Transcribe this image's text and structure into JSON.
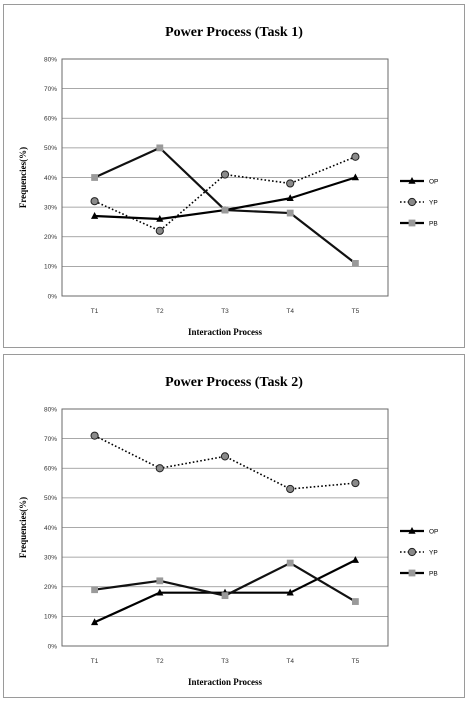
{
  "chart_data": [
    {
      "type": "line",
      "title": "Power Process (Task 1)",
      "xlabel": "Interaction Process",
      "ylabel": "Frequencies(%)",
      "categories": [
        "T1",
        "T2",
        "T3",
        "T4",
        "T5"
      ],
      "y_ticks": [
        "0%",
        "10%",
        "20%",
        "30%",
        "40%",
        "50%",
        "60%",
        "70%",
        "80%"
      ],
      "ylim": [
        0,
        80
      ],
      "grid": true,
      "legend_position": "right",
      "series": [
        {
          "name": "OP",
          "values": [
            27,
            26,
            29,
            33,
            40
          ],
          "color": "#000000",
          "line": "solid",
          "marker": "triangle"
        },
        {
          "name": "YP",
          "values": [
            32,
            22,
            41,
            38,
            47
          ],
          "color": "#000000",
          "line": "dotted",
          "marker": "circle"
        },
        {
          "name": "PB",
          "values": [
            40,
            50,
            29,
            28,
            11
          ],
          "color": "#000000",
          "line": "solid",
          "marker": "square"
        }
      ]
    },
    {
      "type": "line",
      "title": "Power Process (Task 2)",
      "xlabel": "Interaction Process",
      "ylabel": "Frequencies(%)",
      "categories": [
        "T1",
        "T2",
        "T3",
        "T4",
        "T5"
      ],
      "y_ticks": [
        "0%",
        "10%",
        "20%",
        "30%",
        "40%",
        "50%",
        "60%",
        "70%",
        "80%"
      ],
      "ylim": [
        0,
        80
      ],
      "grid": true,
      "legend_position": "right",
      "series": [
        {
          "name": "OP",
          "values": [
            8,
            18,
            18,
            18,
            29
          ],
          "color": "#000000",
          "line": "solid",
          "marker": "triangle"
        },
        {
          "name": "YP",
          "values": [
            71,
            60,
            64,
            53,
            55
          ],
          "color": "#000000",
          "line": "dotted",
          "marker": "circle"
        },
        {
          "name": "PB",
          "values": [
            19,
            22,
            17,
            28,
            15
          ],
          "color": "#000000",
          "line": "solid",
          "marker": "square"
        }
      ]
    }
  ]
}
